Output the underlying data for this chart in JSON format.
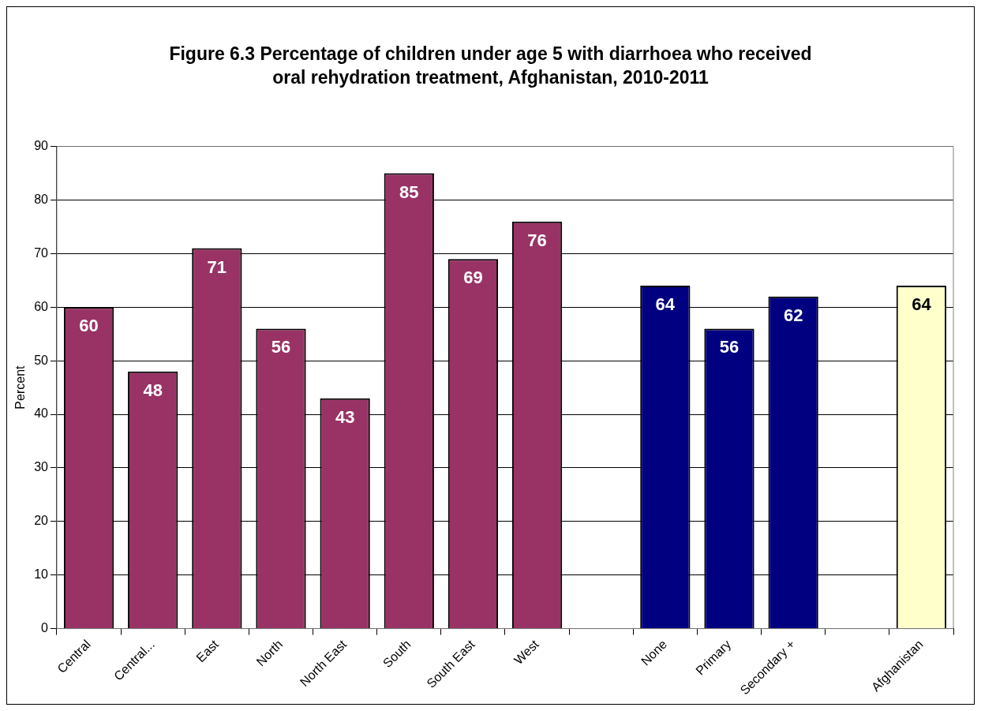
{
  "chart_data": {
    "type": "bar",
    "title": "Figure 6.3 Percentage of children under age 5 with diarrhoea who received oral rehydration treatment, Afghanistan, 2010-2011",
    "ylabel": "Percent",
    "categories": [
      "Central",
      "Central...",
      "East",
      "North",
      "North East",
      "South",
      "South East",
      "West",
      null,
      "None",
      "Primary",
      "Secondary +",
      null,
      "Afghanistan"
    ],
    "values": [
      60,
      48,
      71,
      56,
      43,
      85,
      69,
      76,
      null,
      64,
      56,
      62,
      null,
      64
    ],
    "colors": [
      "#993366",
      "#993366",
      "#993366",
      "#993366",
      "#993366",
      "#993366",
      "#993366",
      "#993366",
      null,
      "#000080",
      "#000080",
      "#000080",
      null,
      "#ffffcc"
    ],
    "ylim": [
      0,
      90
    ],
    "yticks": [
      0,
      10,
      20,
      30,
      40,
      50,
      60,
      70,
      80,
      90
    ],
    "grid": "y",
    "data_labels": true,
    "legend": false
  }
}
